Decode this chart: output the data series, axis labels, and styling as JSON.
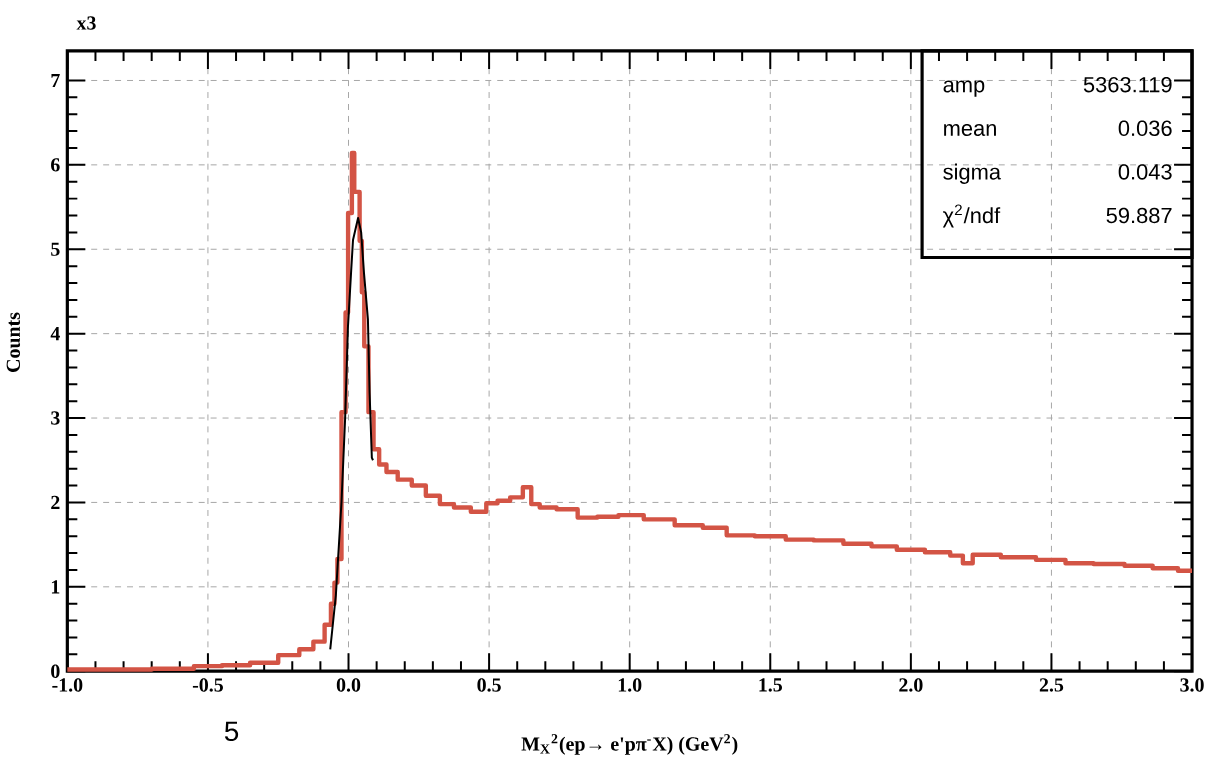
{
  "chart_data": {
    "type": "step",
    "xlabel": "M$_{X}$$^{2}$(ep→ e'pπ$^{-}$X) (GeV$^{2}$)",
    "ylabel": "Counts",
    "annotations": [
      "x3",
      "5",
      "amp",
      "5363.119",
      "mean",
      "0.036",
      "sigma",
      "0.043",
      "χ$^{2}$/ndf",
      "59.887"
    ],
    "xlim": [
      -1,
      3
    ],
    "ylim": [
      0,
      7.35
    ],
    "xticks": [
      {
        "value": -1,
        "label": "-1.0"
      },
      {
        "value": -0.5,
        "label": "-0.5"
      },
      {
        "value": 0,
        "label": "0.0"
      },
      {
        "value": 0.5,
        "label": "0.5"
      },
      {
        "value": 1,
        "label": "1.0"
      },
      {
        "value": 1.5,
        "label": "1.5"
      },
      {
        "value": 2,
        "label": "2.0"
      },
      {
        "value": 2.5,
        "label": "2.5"
      },
      {
        "value": 3,
        "label": "3.0"
      }
    ],
    "yticks": [
      0,
      1,
      2,
      3,
      4,
      5,
      6,
      7
    ],
    "grid": true,
    "series": [
      {
        "color": "#d35445",
        "x": [
          -1.0,
          -0.8,
          -0.6,
          -0.5,
          -0.4,
          -0.3,
          -0.2,
          -0.15,
          -0.1,
          -0.07,
          -0.055,
          -0.045,
          -0.034,
          -0.016,
          -0.005,
          0.002,
          0.008,
          0.016,
          0.025,
          0.034,
          0.045,
          0.05,
          0.062,
          0.08,
          0.098,
          0.12,
          0.15,
          0.2,
          0.25,
          0.3,
          0.35,
          0.4,
          0.47,
          0.51,
          0.55,
          0.6,
          0.64,
          0.66,
          0.7,
          0.78,
          0.85,
          0.92,
          1.0,
          1.1,
          1.22,
          1.3,
          1.39,
          1.5,
          1.61,
          1.7,
          1.82,
          1.9,
          2.0,
          2.1,
          2.18,
          2.19,
          2.25,
          2.39,
          2.5,
          2.6,
          2.7,
          2.82,
          2.9,
          3.0
        ],
        "values": [
          0.02,
          0.02,
          0.03,
          0.06,
          0.07,
          0.1,
          0.19,
          0.26,
          0.35,
          0.55,
          0.8,
          1.05,
          1.33,
          3.07,
          4.25,
          5.43,
          5.43,
          6.14,
          5.68,
          5.68,
          5.1,
          4.49,
          3.85,
          3.07,
          2.63,
          2.45,
          2.36,
          2.27,
          2.2,
          2.08,
          1.98,
          1.94,
          1.89,
          1.99,
          2.02,
          2.06,
          2.18,
          1.98,
          1.94,
          1.92,
          1.82,
          1.83,
          1.85,
          1.8,
          1.73,
          1.7,
          1.61,
          1.6,
          1.56,
          1.55,
          1.51,
          1.48,
          1.44,
          1.41,
          1.37,
          1.28,
          1.38,
          1.35,
          1.32,
          1.28,
          1.27,
          1.25,
          1.22,
          1.19
        ]
      },
      {
        "type": "line",
        "color": "#000000",
        "x": [
          -0.065,
          -0.045,
          -0.025,
          -0.012,
          -0.002,
          0.009,
          0.016,
          0.034,
          0.045,
          0.055,
          0.069,
          0.075,
          0.083,
          0.087
        ],
        "values": [
          0.26,
          0.9,
          2.0,
          3.0,
          4.08,
          4.72,
          5.11,
          5.37,
          5.2,
          4.72,
          4.17,
          3.3,
          2.53,
          2.5
        ]
      }
    ]
  }
}
